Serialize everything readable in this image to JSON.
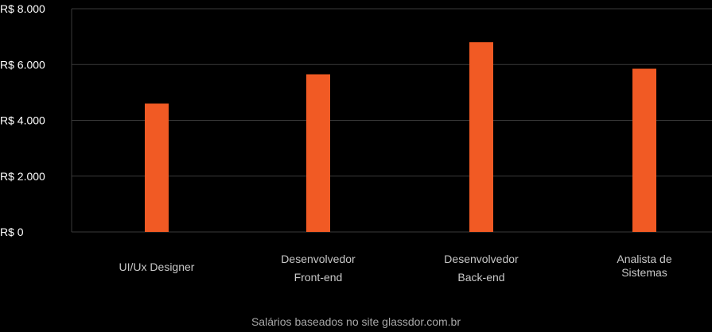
{
  "chart_data": {
    "type": "bar",
    "categories": [
      [
        "UI/Ux Designer"
      ],
      [
        "Desenvolvedor",
        "Front-end"
      ],
      [
        "Desenvolvedor",
        "Back-end"
      ],
      [
        "Analista de",
        "Sistemas"
      ]
    ],
    "values": [
      4600,
      5650,
      6800,
      5850
    ],
    "yticks": [
      0,
      2000,
      4000,
      6000,
      8000
    ],
    "ytick_labels": [
      "R$ 0",
      "R$ 2.000",
      "R$ 4.000",
      "R$ 6.000",
      "R$ 8.000"
    ],
    "ylim": [
      0,
      8000
    ],
    "grid": true,
    "bar_color": "#f15a24",
    "grid_color": "#3a3a3a",
    "caption": "Salários baseados no site glassdor.com.br"
  }
}
